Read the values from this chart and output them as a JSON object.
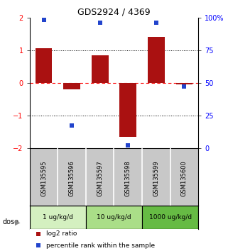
{
  "title": "GDS2924 / 4369",
  "samples": [
    "GSM135595",
    "GSM135596",
    "GSM135597",
    "GSM135598",
    "GSM135599",
    "GSM135600"
  ],
  "log2_ratio": [
    1.05,
    -0.2,
    0.85,
    -1.65,
    1.4,
    -0.05
  ],
  "percentile_rank": [
    98,
    17,
    96,
    2,
    96,
    47
  ],
  "dose_groups": [
    {
      "label": "1 ug/kg/d",
      "samples": [
        0,
        1
      ],
      "color": "#d4f0c0"
    },
    {
      "label": "10 ug/kg/d",
      "samples": [
        2,
        3
      ],
      "color": "#aade88"
    },
    {
      "label": "1000 ug/kg/d",
      "samples": [
        4,
        5
      ],
      "color": "#66bb44"
    }
  ],
  "bar_color": "#aa1111",
  "dot_color": "#2244cc",
  "ylim_left": [
    -2,
    2
  ],
  "ylim_right": [
    0,
    100
  ],
  "yticks_left": [
    -2,
    -1,
    0,
    1,
    2
  ],
  "yticks_right": [
    0,
    25,
    50,
    75,
    100
  ],
  "yticklabels_right": [
    "0",
    "25",
    "50",
    "75",
    "100%"
  ],
  "hlines_black": [
    1.0,
    -1.0
  ],
  "hline_red": 0,
  "legend_red_label": "log2 ratio",
  "legend_blue_label": "percentile rank within the sample",
  "dose_label": "dose",
  "gsm_bg": "#c8c8c8",
  "background_color": "#ffffff"
}
